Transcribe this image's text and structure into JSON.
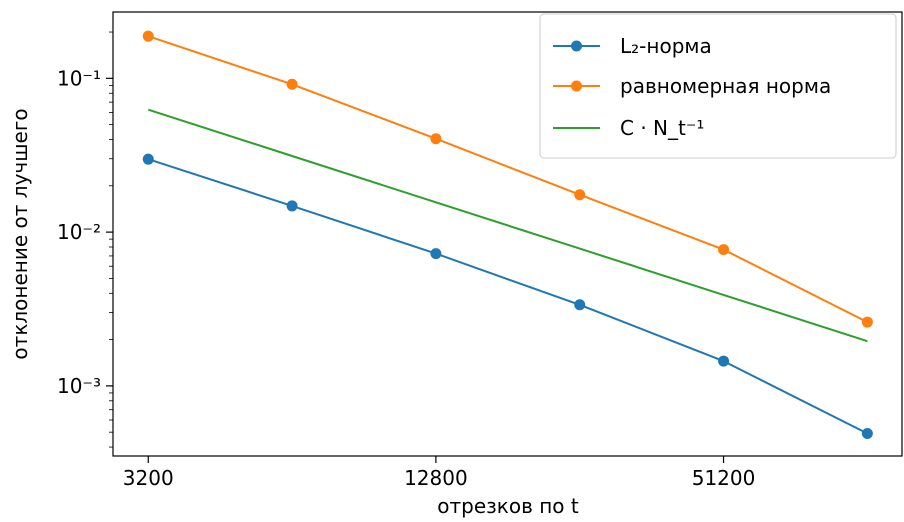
{
  "chart_data": {
    "type": "line",
    "xscale": "log",
    "yscale": "log",
    "xlabel": "отрезков по t",
    "ylabel": "отклонение от лучшего",
    "x": [
      3200,
      6400,
      12800,
      25600,
      51200,
      102400
    ],
    "xticks": [
      3200,
      12800,
      51200
    ],
    "xtick_labels": [
      "3200",
      "12800",
      "51200"
    ],
    "yticks": [
      0.001,
      0.01,
      0.1
    ],
    "ytick_labels": [
      "10⁻³",
      "10⁻²",
      "10⁻¹"
    ],
    "ylim": [
      0.00035,
      0.27
    ],
    "legend_position": "top-right",
    "series": [
      {
        "name": "L₂-норма",
        "color": "#1f77b4",
        "marker": "circle",
        "values": [
          0.0298,
          0.0148,
          0.00725,
          0.00337,
          0.00145,
          0.00049
        ]
      },
      {
        "name": "равномерная норма",
        "color": "#ff7f0e",
        "marker": "circle",
        "values": [
          0.188,
          0.0915,
          0.0405,
          0.0175,
          0.0077,
          0.0026
        ]
      },
      {
        "name": "C · N_t⁻¹",
        "color": "#2ca02c",
        "marker": "none",
        "values": [
          0.0625,
          0.03125,
          0.015625,
          0.0078125,
          0.00390625,
          0.001953125
        ]
      }
    ]
  }
}
